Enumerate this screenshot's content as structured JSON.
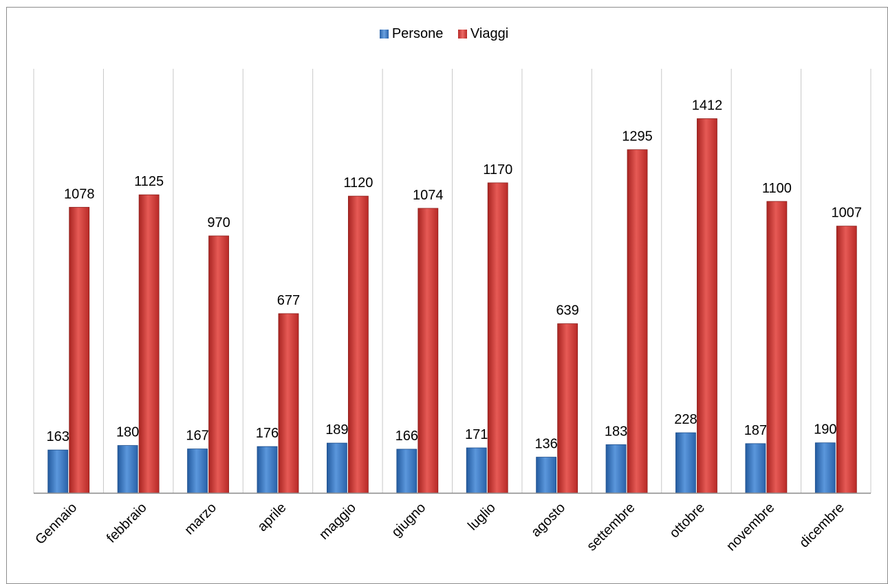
{
  "chart_data": {
    "type": "bar",
    "title": "",
    "xlabel": "",
    "ylabel": "",
    "categories": [
      "Gennaio",
      "febbraio",
      "marzo",
      "aprile",
      "maggio",
      "giugno",
      "luglio",
      "agosto",
      "settembre",
      "ottobre",
      "novembre",
      "dicembre"
    ],
    "series": [
      {
        "name": "Persone",
        "values": [
          163,
          180,
          167,
          176,
          189,
          166,
          171,
          136,
          183,
          228,
          187,
          190
        ],
        "color": "#3a78c4"
      },
      {
        "name": "Viaggi",
        "values": [
          1078,
          1125,
          970,
          677,
          1120,
          1074,
          1170,
          639,
          1295,
          1412,
          1100,
          1007
        ],
        "color": "#d33a36"
      }
    ],
    "ylim": [
      0,
      1600
    ],
    "grid": "vertical",
    "legend_position": "top-center",
    "data_labels": true
  }
}
